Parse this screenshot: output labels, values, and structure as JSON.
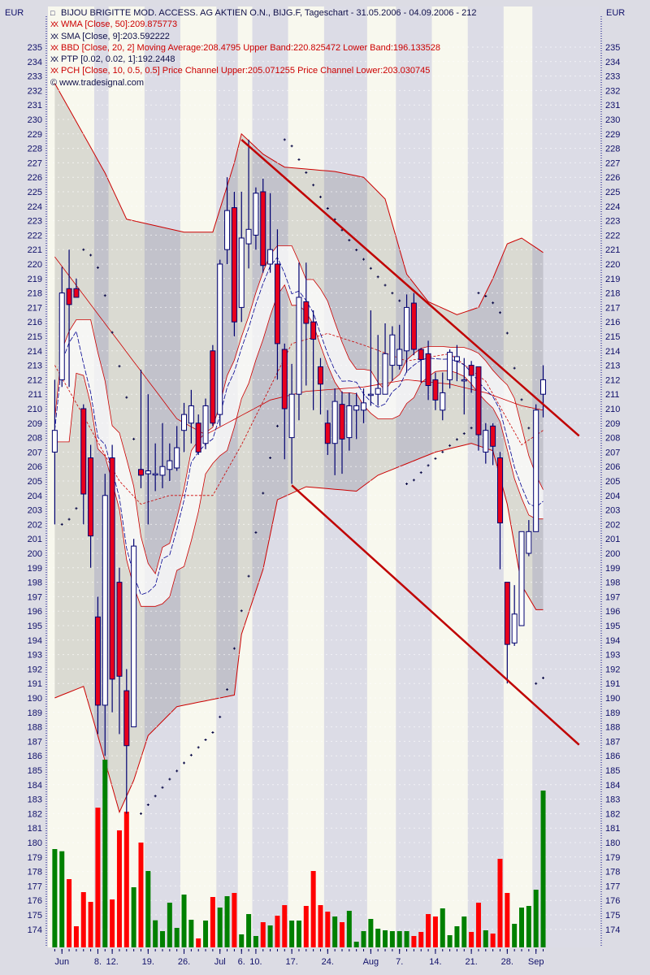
{
  "chart_data": {
    "type": "candlestick",
    "title": "BIJOU BRIGITTE MOD. ACCESS. AG AKTIEN O.N., BIJG.F, Tageschart - 31.05.2006 - 04.09.2006 - 212",
    "currency_left": "EUR",
    "currency_right": "EUR",
    "copyright": "© www.tradesignal.com",
    "legend": [
      {
        "icon": "xx-icon",
        "text": "WMA [Close, 50]:209.875773",
        "color": "#cc0000"
      },
      {
        "icon": "xx-icon",
        "text": "SMA [Close, 9]:203.592222",
        "color": "#10104a"
      },
      {
        "icon": "xx-icon",
        "text": "BBD [Close, 20, 2] Moving Average:208.4795 Upper Band:220.825472 Lower Band:196.133528",
        "color": "#cc0000"
      },
      {
        "icon": "xx-icon",
        "text": "PTP [0.02, 0.02, 1]:192.2448",
        "color": "#10104a"
      },
      {
        "icon": "xx-icon",
        "text": "PCH [Close, 10, 0.5, 0.5] Price Channel Upper:205.071255 Price Channel Lower:203.030745",
        "color": "#cc0000"
      }
    ],
    "ylim": [
      173,
      236
    ],
    "yticks": {
      "from": 174,
      "to": 235,
      "step": 1
    },
    "xticks": [
      {
        "label": "Jun",
        "date": "2006-06-01"
      },
      {
        "label": "8.",
        "date": "2006-06-08"
      },
      {
        "label": "12.",
        "date": "2006-06-12"
      },
      {
        "label": "19.",
        "date": "2006-06-19"
      },
      {
        "label": "26.",
        "date": "2006-06-26"
      },
      {
        "label": "Jul",
        "date": "2006-07-03"
      },
      {
        "label": "6.",
        "date": "2006-07-06"
      },
      {
        "label": "10.",
        "date": "2006-07-10"
      },
      {
        "label": "17.",
        "date": "2006-07-17"
      },
      {
        "label": "24.",
        "date": "2006-07-24"
      },
      {
        "label": "Aug",
        "date": "2006-08-01"
      },
      {
        "label": "7.",
        "date": "2006-08-07"
      },
      {
        "label": "14.",
        "date": "2006-08-14"
      },
      {
        "label": "21.",
        "date": "2006-08-21"
      },
      {
        "label": "28.",
        "date": "2006-08-28"
      },
      {
        "label": "Sep",
        "date": "2006-09-01"
      }
    ],
    "colors": {
      "up_body": "#ffffff",
      "down_body": "#e8001c",
      "wick": "#000070",
      "vol_up": "#008000",
      "vol_down": "#ff0000",
      "band": "#cc0000",
      "trend": "#c00000",
      "sma": "#000090",
      "stripe_a": "#f8f8ee",
      "stripe_b": "#dcdce6"
    },
    "candles_columns": [
      "date",
      "open",
      "high",
      "low",
      "close",
      "volume_relative"
    ],
    "candles": [
      [
        "2006-05-31",
        207,
        212,
        202,
        208.5,
        363
      ],
      [
        "2006-06-01",
        212,
        219.8,
        211.5,
        218,
        355
      ],
      [
        "2006-06-02",
        218.3,
        221,
        211.5,
        217.2,
        252
      ],
      [
        "2006-06-05",
        218.3,
        219,
        217.7,
        217.7,
        78
      ],
      [
        "2006-06-06",
        210,
        210.3,
        202,
        204.1,
        204
      ],
      [
        "2006-06-07",
        206.6,
        207.5,
        199,
        201.2,
        168
      ],
      [
        "2006-06-08",
        195.6,
        197,
        187.5,
        189.5,
        516
      ],
      [
        "2006-06-09",
        189.5,
        205.5,
        186,
        204,
        693
      ],
      [
        "2006-06-12",
        206.6,
        207.5,
        189,
        191.3,
        177
      ],
      [
        "2006-06-13",
        198,
        199,
        187.5,
        191.5,
        432
      ],
      [
        "2006-06-14",
        190.5,
        192,
        182,
        186.7,
        501
      ],
      [
        "2006-06-15",
        188,
        201,
        188,
        200.5,
        222
      ],
      [
        "2006-06-16",
        205.8,
        212.7,
        204.5,
        205.4,
        387
      ],
      [
        "2006-06-19",
        205.5,
        211,
        202,
        205.7,
        282
      ],
      [
        "2006-06-20",
        205.5,
        207.6,
        204.3,
        205.5,
        100
      ],
      [
        "2006-06-21",
        205.4,
        209,
        204.5,
        206,
        60
      ],
      [
        "2006-06-22",
        205.8,
        207.6,
        205,
        206.4,
        165
      ],
      [
        "2006-06-23",
        205.9,
        208.8,
        205.7,
        207.3,
        72
      ],
      [
        "2006-06-26",
        208.5,
        210.4,
        207,
        209.6,
        195
      ],
      [
        "2006-06-27",
        209,
        211.3,
        207.6,
        210.2,
        102
      ],
      [
        "2006-06-28",
        209,
        209.6,
        206.8,
        207,
        33
      ],
      [
        "2006-06-29",
        207.6,
        210.7,
        207.2,
        210.2,
        99
      ],
      [
        "2006-06-30",
        214,
        214.4,
        208.8,
        209,
        186
      ],
      [
        "2006-07-03",
        209.6,
        220.3,
        208.8,
        220,
        147
      ],
      [
        "2006-07-04",
        221,
        226,
        220,
        223.7,
        189
      ],
      [
        "2006-07-05",
        223.9,
        225,
        215,
        216,
        201
      ],
      [
        "2006-07-06",
        217,
        225,
        216,
        221.8,
        48
      ],
      [
        "2006-07-07",
        221.4,
        228.6,
        219.7,
        222.4,
        123
      ],
      [
        "2006-07-10",
        222,
        225.3,
        221,
        224.9,
        42
      ],
      [
        "2006-07-11",
        225,
        225.9,
        219.4,
        219.9,
        93
      ],
      [
        "2006-07-12",
        220,
        224.9,
        219.4,
        221,
        81
      ],
      [
        "2006-07-13",
        220,
        222.4,
        212,
        214.5,
        117
      ],
      [
        "2006-07-14",
        214.1,
        214.5,
        206.5,
        210,
        156
      ],
      [
        "2006-07-17",
        208,
        213.1,
        204.8,
        211,
        99
      ],
      [
        "2006-07-18",
        211,
        220.1,
        209.2,
        217.7,
        99
      ],
      [
        "2006-07-19",
        217.4,
        220.1,
        211.6,
        215.9,
        153
      ],
      [
        "2006-07-20",
        216,
        216.8,
        209.9,
        214.8,
        282
      ],
      [
        "2006-07-21",
        212.9,
        213.5,
        209.6,
        211.7,
        156
      ],
      [
        "2006-07-24",
        209,
        209.9,
        206.8,
        207.6,
        132
      ],
      [
        "2006-07-25",
        207.6,
        211.4,
        205.4,
        210.5,
        114
      ],
      [
        "2006-07-26",
        210.3,
        211.2,
        205.5,
        207.9,
        93
      ],
      [
        "2006-07-27",
        208,
        211.1,
        207.1,
        210.2,
        135
      ],
      [
        "2006-07-28",
        209.9,
        211.1,
        207.9,
        210.2,
        21
      ],
      [
        "2006-07-31",
        209.9,
        211.4,
        209,
        210.4,
        60
      ],
      [
        "2006-08-01",
        211,
        216.8,
        210.2,
        211,
        105
      ],
      [
        "2006-08-02",
        211,
        215.1,
        210.2,
        211.4,
        69
      ],
      [
        "2006-08-03",
        211,
        215.9,
        211,
        213.8,
        63
      ],
      [
        "2006-08-04",
        213,
        215.7,
        211.9,
        215.1,
        60
      ],
      [
        "2006-08-07",
        213,
        215.8,
        212.7,
        214.1,
        60
      ],
      [
        "2006-08-08",
        214,
        217.9,
        212.5,
        217,
        60
      ],
      [
        "2006-08-09",
        217.3,
        218,
        213.7,
        214.1,
        42
      ],
      [
        "2006-08-10",
        214.1,
        214.2,
        211.8,
        213.4,
        57
      ],
      [
        "2006-08-11",
        213.8,
        214.7,
        210.6,
        211.6,
        123
      ],
      [
        "2006-08-14",
        212,
        212.5,
        209.9,
        210.6,
        114
      ],
      [
        "2006-08-15",
        209.9,
        212.5,
        209.2,
        211.1,
        144
      ],
      [
        "2006-08-16",
        212,
        214.1,
        211.4,
        213.9,
        45
      ],
      [
        "2006-08-17",
        213.3,
        214.4,
        211.9,
        213.6,
        78
      ],
      [
        "2006-08-18",
        212,
        213.5,
        209.6,
        212,
        114
      ],
      [
        "2006-08-21",
        213,
        213.3,
        211.1,
        212.3,
        57
      ],
      [
        "2006-08-22",
        212.9,
        212.9,
        207.1,
        208.2,
        165
      ],
      [
        "2006-08-23",
        207,
        209,
        206.2,
        208.5,
        63
      ],
      [
        "2006-08-24",
        208.8,
        209,
        206.1,
        207.4,
        51
      ],
      [
        "2006-08-25",
        206.6,
        207,
        198.9,
        202.1,
        327
      ],
      [
        "2006-08-28",
        198,
        198,
        191,
        193.7,
        201
      ],
      [
        "2006-08-29",
        193.8,
        197.8,
        193.6,
        195.8,
        87
      ],
      [
        "2006-08-30",
        195,
        201.5,
        195,
        201.5,
        147
      ],
      [
        "2006-08-31",
        200,
        202.3,
        199.8,
        201.5,
        153
      ],
      [
        "2006-09-01",
        201.5,
        210.3,
        201.5,
        209.9,
        213
      ],
      [
        "2006-09-04",
        211,
        213,
        209.4,
        212,
        579
      ]
    ],
    "bollinger_upper": [
      [
        "2006-05-31",
        232.5
      ],
      [
        "2006-06-09",
        226.3
      ],
      [
        "2006-06-14",
        223.1
      ],
      [
        "2006-06-26",
        222.2
      ],
      [
        "2006-06-30",
        222.2
      ],
      [
        "2006-07-05",
        227
      ],
      [
        "2006-07-06",
        229
      ],
      [
        "2006-07-11",
        227.6
      ],
      [
        "2006-07-14",
        226.7
      ],
      [
        "2006-07-25",
        226.4
      ],
      [
        "2006-07-31",
        226
      ],
      [
        "2006-08-03",
        224.5
      ],
      [
        "2006-08-08",
        219.3
      ],
      [
        "2006-08-11",
        217.4
      ],
      [
        "2006-08-17",
        216.5
      ],
      [
        "2006-08-22",
        217
      ],
      [
        "2006-08-24",
        219
      ],
      [
        "2006-08-28",
        221.4
      ],
      [
        "2006-08-30",
        221.8
      ],
      [
        "2006-09-04",
        220.8
      ]
    ],
    "bollinger_middle": [
      [
        "2006-05-31",
        213
      ],
      [
        "2006-06-06",
        209.5
      ],
      [
        "2006-06-13",
        205
      ],
      [
        "2006-06-16",
        203.4
      ],
      [
        "2006-06-22",
        204
      ],
      [
        "2006-06-30",
        204
      ],
      [
        "2006-07-06",
        207.5
      ],
      [
        "2006-07-12",
        211.5
      ],
      [
        "2006-07-17",
        214.5
      ],
      [
        "2006-07-24",
        215.2
      ],
      [
        "2006-07-31",
        214.4
      ],
      [
        "2006-08-08",
        213.3
      ],
      [
        "2006-08-16",
        213.8
      ],
      [
        "2006-08-23",
        211.9
      ],
      [
        "2006-08-30",
        207.5
      ],
      [
        "2006-09-04",
        208.5
      ]
    ],
    "bollinger_lower": [
      [
        "2006-05-31",
        190
      ],
      [
        "2006-06-06",
        190.8
      ],
      [
        "2006-06-08",
        187.4
      ],
      [
        "2006-06-13",
        182.1
      ],
      [
        "2006-06-15",
        184.3
      ],
      [
        "2006-06-19",
        187.4
      ],
      [
        "2006-06-23",
        189.4
      ],
      [
        "2006-07-03",
        190
      ],
      [
        "2006-07-05",
        190.2
      ],
      [
        "2006-07-06",
        194.4
      ],
      [
        "2006-07-11",
        198.9
      ],
      [
        "2006-07-13",
        203.7
      ],
      [
        "2006-07-19",
        204.6
      ],
      [
        "2006-07-28",
        204.3
      ],
      [
        "2006-08-02",
        205.4
      ],
      [
        "2006-08-08",
        206.2
      ],
      [
        "2006-08-14",
        207
      ],
      [
        "2006-08-21",
        207.6
      ],
      [
        "2006-08-24",
        207.1
      ],
      [
        "2006-08-28",
        203.4
      ],
      [
        "2006-08-30",
        197.8
      ],
      [
        "2006-09-01",
        196.1
      ],
      [
        "2006-09-04",
        196.1
      ]
    ],
    "wma": [
      [
        "2006-05-31",
        220.5
      ],
      [
        "2006-06-23",
        209.3
      ],
      [
        "2006-06-29",
        208.2
      ],
      [
        "2006-07-12",
        210.6
      ],
      [
        "2006-07-19",
        211.2
      ],
      [
        "2006-07-31",
        211.5
      ],
      [
        "2006-08-08",
        212
      ],
      [
        "2006-08-16",
        211.7
      ],
      [
        "2006-08-23",
        211.1
      ],
      [
        "2006-08-30",
        210.2
      ],
      [
        "2006-09-04",
        209.9
      ]
    ],
    "trendlines": [
      {
        "from": [
          "2006-07-06",
          228.6
        ],
        "to": [
          "2006-09-04",
          210.3
        ]
      },
      {
        "from": [
          "2006-07-17",
          204.7
        ],
        "to": [
          "2006-09-04",
          189.0
        ]
      }
    ]
  }
}
